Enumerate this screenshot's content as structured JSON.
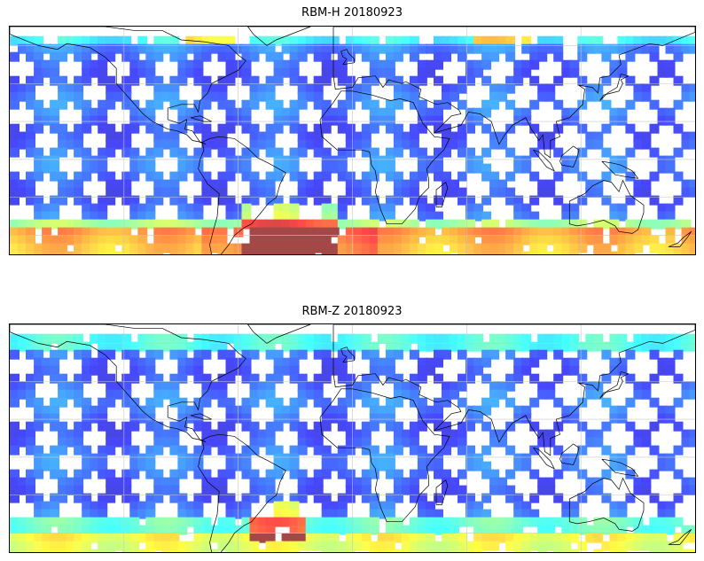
{
  "panels": [
    {
      "id": "rbm-h",
      "title": "RBM-H 20180923",
      "style": {
        "track_color": "#6b6bff",
        "polar_south_color": "#e05050",
        "polar_north_color": "#ffb040"
      }
    },
    {
      "id": "rbm-z",
      "title": "RBM-Z 20180923",
      "style": {
        "track_color": "#6b6bff",
        "polar_south_color": "#ffd24a",
        "polar_north_color": "#5fd8f0"
      }
    }
  ],
  "map": {
    "projection": "plate-carree",
    "extent": {
      "lon": [
        -180,
        180
      ],
      "lat": [
        -50,
        70
      ]
    },
    "gridlines": true,
    "coastlines": true,
    "colormap": "jet"
  }
}
